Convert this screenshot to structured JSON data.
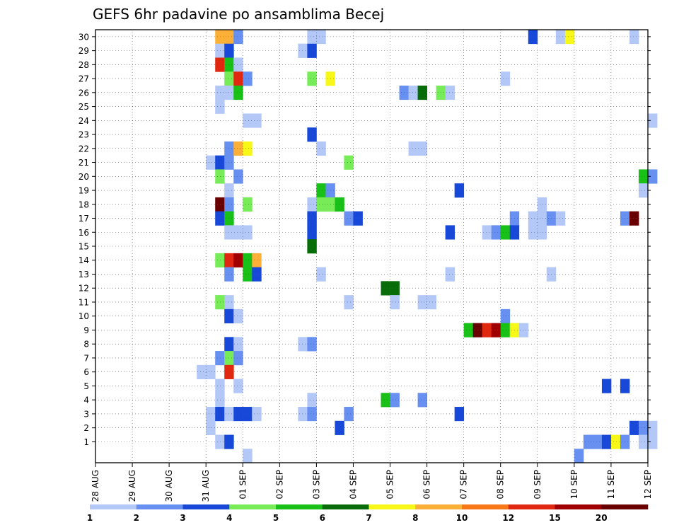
{
  "chart_data": {
    "type": "heatmap",
    "title": "GEFS 6hr padavine po ansamblima Becej",
    "xlabel": "",
    "ylabel": "",
    "x_tick_labels": [
      "28 AUG",
      "29 AUG",
      "30 AUG",
      "31 AUG",
      "01 SEP",
      "02 SEP",
      "03 SEP",
      "04 SEP",
      "05 SEP",
      "06 SEP",
      "07 SEP",
      "08 SEP",
      "09 SEP",
      "10 SEP",
      "11 SEP",
      "12 SEP"
    ],
    "y_tick_labels": [
      "1",
      "2",
      "3",
      "4",
      "5",
      "6",
      "7",
      "8",
      "9",
      "10",
      "11",
      "12",
      "13",
      "14",
      "15",
      "16",
      "17",
      "18",
      "19",
      "20",
      "21",
      "22",
      "23",
      "24",
      "25",
      "26",
      "27",
      "28",
      "29",
      "30"
    ],
    "ylim": [
      0,
      30
    ],
    "time_steps_per_day": 4,
    "grid": true,
    "colorbar": {
      "placement": "bottom",
      "tick_labels": [
        "1",
        "2",
        "3",
        "4",
        "5",
        "6",
        "7",
        "8",
        "10",
        "12",
        "15",
        "20"
      ],
      "bins": [
        {
          "lower": 1,
          "color": "#b4c8f8"
        },
        {
          "lower": 2,
          "color": "#6890f0"
        },
        {
          "lower": 3,
          "color": "#1848d8"
        },
        {
          "lower": 4,
          "color": "#78ec58"
        },
        {
          "lower": 5,
          "color": "#18c018"
        },
        {
          "lower": 6,
          "color": "#086c08"
        },
        {
          "lower": 7,
          "color": "#f8f818"
        },
        {
          "lower": 8,
          "color": "#fcb038"
        },
        {
          "lower": 10,
          "color": "#f87818"
        },
        {
          "lower": 12,
          "color": "#e02810"
        },
        {
          "lower": 15,
          "color": "#a00000"
        },
        {
          "lower": 20,
          "color": "#680000"
        }
      ]
    },
    "cells": [
      {
        "member": 30,
        "step": 13,
        "bin": 8
      },
      {
        "member": 30,
        "step": 14,
        "bin": 8
      },
      {
        "member": 30,
        "step": 15,
        "bin": 2
      },
      {
        "member": 30,
        "step": 23,
        "bin": 1
      },
      {
        "member": 30,
        "step": 24,
        "bin": 1
      },
      {
        "member": 30,
        "step": 47,
        "bin": 3
      },
      {
        "member": 30,
        "step": 50,
        "bin": 1
      },
      {
        "member": 30,
        "step": 51,
        "bin": 7
      },
      {
        "member": 30,
        "step": 58,
        "bin": 1
      },
      {
        "member": 29,
        "step": 13,
        "bin": 1
      },
      {
        "member": 29,
        "step": 14,
        "bin": 3
      },
      {
        "member": 29,
        "step": 22,
        "bin": 1
      },
      {
        "member": 29,
        "step": 23,
        "bin": 3
      },
      {
        "member": 28,
        "step": 13,
        "bin": 10
      },
      {
        "member": 28,
        "step": 14,
        "bin": 5
      },
      {
        "member": 28,
        "step": 15,
        "bin": 1
      },
      {
        "member": 27,
        "step": 14,
        "bin": 4
      },
      {
        "member": 27,
        "step": 15,
        "bin": 10
      },
      {
        "member": 27,
        "step": 16,
        "bin": 2
      },
      {
        "member": 27,
        "step": 23,
        "bin": 4
      },
      {
        "member": 27,
        "step": 25,
        "bin": 7
      },
      {
        "member": 27,
        "step": 44,
        "bin": 1
      },
      {
        "member": 26,
        "step": 13,
        "bin": 1
      },
      {
        "member": 26,
        "step": 14,
        "bin": 1
      },
      {
        "member": 26,
        "step": 15,
        "bin": 5
      },
      {
        "member": 26,
        "step": 33,
        "bin": 2
      },
      {
        "member": 26,
        "step": 34,
        "bin": 1
      },
      {
        "member": 26,
        "step": 35,
        "bin": 6
      },
      {
        "member": 26,
        "step": 37,
        "bin": 4
      },
      {
        "member": 26,
        "step": 38,
        "bin": 1
      },
      {
        "member": 25,
        "step": 13,
        "bin": 1
      },
      {
        "member": 24,
        "step": 16,
        "bin": 1
      },
      {
        "member": 24,
        "step": 17,
        "bin": 1
      },
      {
        "member": 24,
        "step": 60,
        "bin": 1
      },
      {
        "member": 23,
        "step": 23,
        "bin": 3
      },
      {
        "member": 22,
        "step": 14,
        "bin": 2
      },
      {
        "member": 22,
        "step": 15,
        "bin": 8
      },
      {
        "member": 22,
        "step": 16,
        "bin": 7
      },
      {
        "member": 22,
        "step": 24,
        "bin": 1
      },
      {
        "member": 22,
        "step": 34,
        "bin": 1
      },
      {
        "member": 22,
        "step": 35,
        "bin": 1
      },
      {
        "member": 21,
        "step": 12,
        "bin": 1
      },
      {
        "member": 21,
        "step": 13,
        "bin": 3
      },
      {
        "member": 21,
        "step": 14,
        "bin": 2
      },
      {
        "member": 21,
        "step": 27,
        "bin": 4
      },
      {
        "member": 20,
        "step": 13,
        "bin": 4
      },
      {
        "member": 20,
        "step": 15,
        "bin": 2
      },
      {
        "member": 20,
        "step": 59,
        "bin": 5
      },
      {
        "member": 20,
        "step": 60,
        "bin": 2
      },
      {
        "member": 19,
        "step": 14,
        "bin": 1
      },
      {
        "member": 19,
        "step": 24,
        "bin": 5
      },
      {
        "member": 19,
        "step": 25,
        "bin": 2
      },
      {
        "member": 19,
        "step": 39,
        "bin": 3
      },
      {
        "member": 19,
        "step": 59,
        "bin": 1
      },
      {
        "member": 18,
        "step": 13,
        "bin": 12
      },
      {
        "member": 18,
        "step": 14,
        "bin": 2
      },
      {
        "member": 18,
        "step": 16,
        "bin": 4
      },
      {
        "member": 18,
        "step": 23,
        "bin": 1
      },
      {
        "member": 18,
        "step": 24,
        "bin": 4
      },
      {
        "member": 18,
        "step": 25,
        "bin": 4
      },
      {
        "member": 18,
        "step": 26,
        "bin": 5
      },
      {
        "member": 18,
        "step": 48,
        "bin": 1
      },
      {
        "member": 17,
        "step": 13,
        "bin": 3
      },
      {
        "member": 17,
        "step": 14,
        "bin": 5
      },
      {
        "member": 17,
        "step": 23,
        "bin": 3
      },
      {
        "member": 17,
        "step": 27,
        "bin": 2
      },
      {
        "member": 17,
        "step": 28,
        "bin": 3
      },
      {
        "member": 17,
        "step": 45,
        "bin": 2
      },
      {
        "member": 17,
        "step": 47,
        "bin": 1
      },
      {
        "member": 17,
        "step": 48,
        "bin": 1
      },
      {
        "member": 17,
        "step": 49,
        "bin": 2
      },
      {
        "member": 17,
        "step": 50,
        "bin": 1
      },
      {
        "member": 17,
        "step": 57,
        "bin": 2
      },
      {
        "member": 17,
        "step": 58,
        "bin": 12
      },
      {
        "member": 16,
        "step": 14,
        "bin": 1
      },
      {
        "member": 16,
        "step": 15,
        "bin": 1
      },
      {
        "member": 16,
        "step": 16,
        "bin": 1
      },
      {
        "member": 16,
        "step": 23,
        "bin": 3
      },
      {
        "member": 16,
        "step": 38,
        "bin": 3
      },
      {
        "member": 16,
        "step": 42,
        "bin": 1
      },
      {
        "member": 16,
        "step": 43,
        "bin": 2
      },
      {
        "member": 16,
        "step": 44,
        "bin": 5
      },
      {
        "member": 16,
        "step": 45,
        "bin": 3
      },
      {
        "member": 16,
        "step": 47,
        "bin": 1
      },
      {
        "member": 16,
        "step": 48,
        "bin": 1
      },
      {
        "member": 15,
        "step": 23,
        "bin": 6
      },
      {
        "member": 14,
        "step": 13,
        "bin": 4
      },
      {
        "member": 14,
        "step": 14,
        "bin": 10
      },
      {
        "member": 14,
        "step": 15,
        "bin": 11
      },
      {
        "member": 14,
        "step": 16,
        "bin": 5
      },
      {
        "member": 14,
        "step": 17,
        "bin": 8
      },
      {
        "member": 13,
        "step": 14,
        "bin": 2
      },
      {
        "member": 13,
        "step": 16,
        "bin": 5
      },
      {
        "member": 13,
        "step": 17,
        "bin": 3
      },
      {
        "member": 13,
        "step": 24,
        "bin": 1
      },
      {
        "member": 13,
        "step": 38,
        "bin": 1
      },
      {
        "member": 13,
        "step": 49,
        "bin": 1
      },
      {
        "member": 12,
        "step": 31,
        "bin": 6
      },
      {
        "member": 12,
        "step": 32,
        "bin": 6
      },
      {
        "member": 11,
        "step": 13,
        "bin": 4
      },
      {
        "member": 11,
        "step": 14,
        "bin": 1
      },
      {
        "member": 11,
        "step": 27,
        "bin": 1
      },
      {
        "member": 11,
        "step": 32,
        "bin": 1
      },
      {
        "member": 11,
        "step": 35,
        "bin": 1
      },
      {
        "member": 11,
        "step": 36,
        "bin": 1
      },
      {
        "member": 10,
        "step": 14,
        "bin": 3
      },
      {
        "member": 10,
        "step": 15,
        "bin": 1
      },
      {
        "member": 10,
        "step": 44,
        "bin": 2
      },
      {
        "member": 9,
        "step": 40,
        "bin": 5
      },
      {
        "member": 9,
        "step": 41,
        "bin": 12
      },
      {
        "member": 9,
        "step": 42,
        "bin": 10
      },
      {
        "member": 9,
        "step": 43,
        "bin": 11
      },
      {
        "member": 9,
        "step": 44,
        "bin": 5
      },
      {
        "member": 9,
        "step": 45,
        "bin": 7
      },
      {
        "member": 9,
        "step": 46,
        "bin": 1
      },
      {
        "member": 8,
        "step": 14,
        "bin": 3
      },
      {
        "member": 8,
        "step": 15,
        "bin": 1
      },
      {
        "member": 8,
        "step": 22,
        "bin": 1
      },
      {
        "member": 8,
        "step": 23,
        "bin": 2
      },
      {
        "member": 7,
        "step": 13,
        "bin": 2
      },
      {
        "member": 7,
        "step": 14,
        "bin": 4
      },
      {
        "member": 7,
        "step": 15,
        "bin": 2
      },
      {
        "member": 6,
        "step": 11,
        "bin": 1
      },
      {
        "member": 6,
        "step": 12,
        "bin": 1
      },
      {
        "member": 6,
        "step": 14,
        "bin": 10
      },
      {
        "member": 5,
        "step": 13,
        "bin": 1
      },
      {
        "member": 5,
        "step": 15,
        "bin": 1
      },
      {
        "member": 5,
        "step": 55,
        "bin": 3
      },
      {
        "member": 5,
        "step": 57,
        "bin": 3
      },
      {
        "member": 4,
        "step": 13,
        "bin": 1
      },
      {
        "member": 4,
        "step": 23,
        "bin": 1
      },
      {
        "member": 4,
        "step": 31,
        "bin": 5
      },
      {
        "member": 4,
        "step": 32,
        "bin": 2
      },
      {
        "member": 4,
        "step": 35,
        "bin": 2
      },
      {
        "member": 3,
        "step": 12,
        "bin": 1
      },
      {
        "member": 3,
        "step": 13,
        "bin": 3
      },
      {
        "member": 3,
        "step": 14,
        "bin": 1
      },
      {
        "member": 3,
        "step": 15,
        "bin": 3
      },
      {
        "member": 3,
        "step": 16,
        "bin": 3
      },
      {
        "member": 3,
        "step": 17,
        "bin": 1
      },
      {
        "member": 3,
        "step": 22,
        "bin": 1
      },
      {
        "member": 3,
        "step": 23,
        "bin": 2
      },
      {
        "member": 3,
        "step": 27,
        "bin": 2
      },
      {
        "member": 3,
        "step": 39,
        "bin": 3
      },
      {
        "member": 2,
        "step": 12,
        "bin": 1
      },
      {
        "member": 2,
        "step": 26,
        "bin": 3
      },
      {
        "member": 2,
        "step": 58,
        "bin": 3
      },
      {
        "member": 2,
        "step": 59,
        "bin": 2
      },
      {
        "member": 2,
        "step": 60,
        "bin": 1
      },
      {
        "member": 1,
        "step": 13,
        "bin": 1
      },
      {
        "member": 1,
        "step": 14,
        "bin": 3
      },
      {
        "member": 1,
        "step": 53,
        "bin": 2
      },
      {
        "member": 1,
        "step": 54,
        "bin": 2
      },
      {
        "member": 1,
        "step": 55,
        "bin": 3
      },
      {
        "member": 1,
        "step": 56,
        "bin": 7
      },
      {
        "member": 1,
        "step": 57,
        "bin": 2
      },
      {
        "member": 1,
        "step": 59,
        "bin": 1
      },
      {
        "member": 1,
        "step": 60,
        "bin": 1
      },
      {
        "member": 0,
        "step": 16,
        "bin": 1
      },
      {
        "member": 0,
        "step": 52,
        "bin": 2
      }
    ]
  }
}
